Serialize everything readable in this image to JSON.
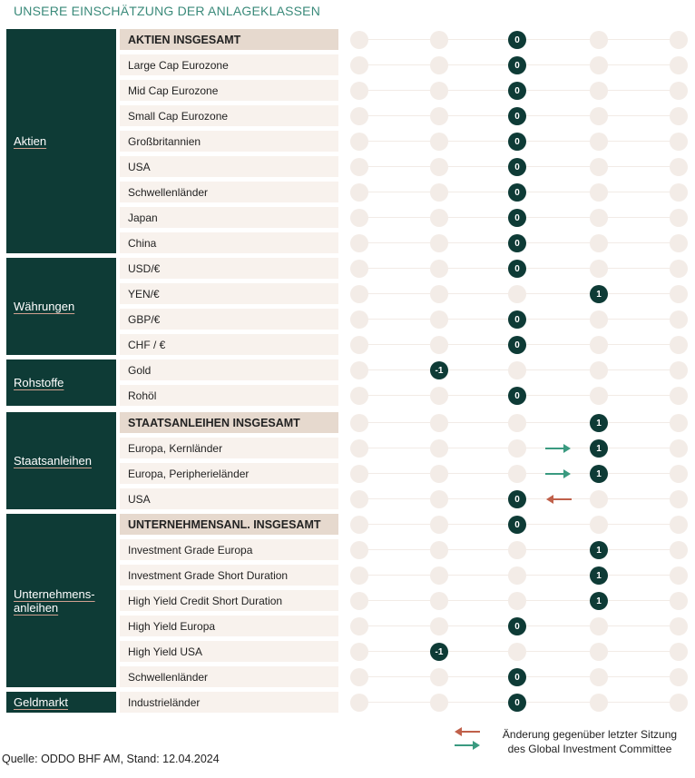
{
  "title": "UNSERE EINSCHÄTZUNG DER ANLAGEKLASSEN",
  "colors": {
    "dark": "#0e3b36",
    "up_arrow": "#3a9a80",
    "down_arrow": "#c0604a",
    "title": "#3a8a7a"
  },
  "categories": [
    {
      "name": "Aktien",
      "first_row": 0,
      "last_row": 8
    },
    {
      "name": "Währungen",
      "first_row": 9,
      "last_row": 12
    },
    {
      "name": "Rohstoffe",
      "first_row": 13,
      "last_row": 14
    },
    {
      "name": "Staatsanleihen",
      "first_row": 15,
      "last_row": 18
    },
    {
      "name": "Unternehmens-\nanleihen",
      "first_row": 19,
      "last_row": 25
    },
    {
      "name": "Geldmarkt",
      "first_row": 26,
      "last_row": 26
    }
  ],
  "chart_data": {
    "type": "table",
    "scale": [
      -2,
      -1,
      0,
      1,
      2
    ],
    "rows": [
      {
        "label": "AKTIEN INSGESAMT",
        "header": true,
        "value": 0,
        "change": null
      },
      {
        "label": "Large Cap Eurozone",
        "header": false,
        "value": 0,
        "change": null
      },
      {
        "label": "Mid Cap Eurozone",
        "header": false,
        "value": 0,
        "change": null
      },
      {
        "label": "Small Cap Eurozone",
        "header": false,
        "value": 0,
        "change": null
      },
      {
        "label": "Großbritannien",
        "header": false,
        "value": 0,
        "change": null
      },
      {
        "label": "USA",
        "header": false,
        "value": 0,
        "change": null
      },
      {
        "label": "Schwellenländer",
        "header": false,
        "value": 0,
        "change": null
      },
      {
        "label": "Japan",
        "header": false,
        "value": 0,
        "change": null
      },
      {
        "label": "China",
        "header": false,
        "value": 0,
        "change": null
      },
      {
        "label": "USD/€",
        "header": false,
        "value": 0,
        "change": null
      },
      {
        "label": "YEN/€",
        "header": false,
        "value": 1,
        "change": null
      },
      {
        "label": "GBP/€",
        "header": false,
        "value": 0,
        "change": null
      },
      {
        "label": "CHF / €",
        "header": false,
        "value": 0,
        "change": null
      },
      {
        "label": "Gold",
        "header": false,
        "value": -1,
        "change": null
      },
      {
        "label": "Rohöl",
        "header": false,
        "value": 0,
        "change": null
      },
      {
        "label": "STAATSANLEIHEN INSGESAMT",
        "header": true,
        "value": 1,
        "change": null
      },
      {
        "label": "Europa, Kernländer",
        "header": false,
        "value": 1,
        "change": "up"
      },
      {
        "label": "Europa, Peripherieländer",
        "header": false,
        "value": 1,
        "change": "up"
      },
      {
        "label": "USA",
        "header": false,
        "value": 0,
        "change": "down"
      },
      {
        "label": "UNTERNEHMENSANL. INSGESAMT",
        "header": true,
        "value": 0,
        "change": null
      },
      {
        "label": "Investment Grade Europa",
        "header": false,
        "value": 1,
        "change": null
      },
      {
        "label": "Investment Grade Short Duration",
        "header": false,
        "value": 1,
        "change": null
      },
      {
        "label": "High Yield Credit Short Duration",
        "header": false,
        "value": 1,
        "change": null
      },
      {
        "label": "High Yield Europa",
        "header": false,
        "value": 0,
        "change": null
      },
      {
        "label": "High Yield USA",
        "header": false,
        "value": -1,
        "change": null
      },
      {
        "label": "Schwellenländer",
        "header": false,
        "value": 0,
        "change": null
      },
      {
        "label": "Industrieländer",
        "header": false,
        "value": 0,
        "change": null
      }
    ]
  },
  "legend": {
    "line1": "Änderung gegenüber letzter Sitzung",
    "line2": "des Global Investment Committee"
  },
  "source": "Quelle: ODDO BHF AM, Stand: 12.04.2024"
}
